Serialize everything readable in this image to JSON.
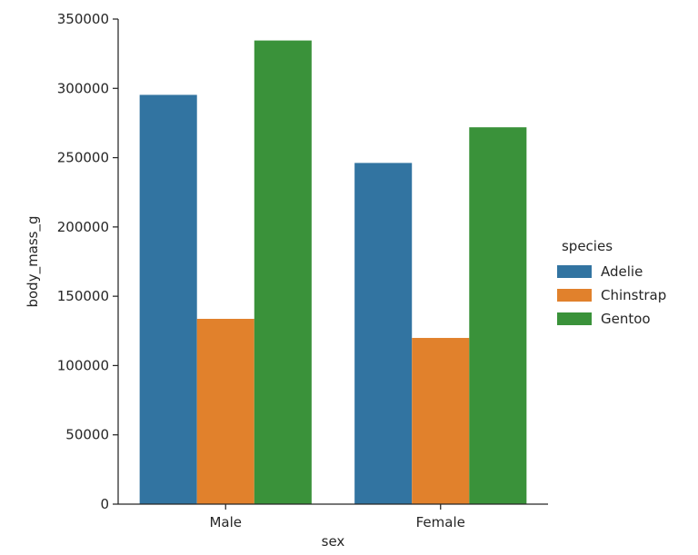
{
  "chart_data": {
    "type": "bar",
    "categories": [
      "Male",
      "Female"
    ],
    "series": [
      {
        "name": "Adelie",
        "values": [
          295310,
          246190
        ],
        "color": "#3274a1"
      },
      {
        "name": "Chinstrap",
        "values": [
          133700,
          119925
        ],
        "color": "#e1812c"
      },
      {
        "name": "Gentoo",
        "values": [
          334545,
          271910
        ],
        "color": "#3a923a"
      }
    ],
    "xlabel": "sex",
    "ylabel": "body_mass_g",
    "ylim": [
      0,
      350000
    ],
    "yticks": [
      0,
      50000,
      100000,
      150000,
      200000,
      250000,
      300000,
      350000
    ],
    "ytick_labels": [
      "0",
      "50000",
      "100000",
      "150000",
      "200000",
      "250000",
      "300000",
      "350000"
    ],
    "legend_title": "species",
    "legend_position": "right",
    "grid": false
  }
}
